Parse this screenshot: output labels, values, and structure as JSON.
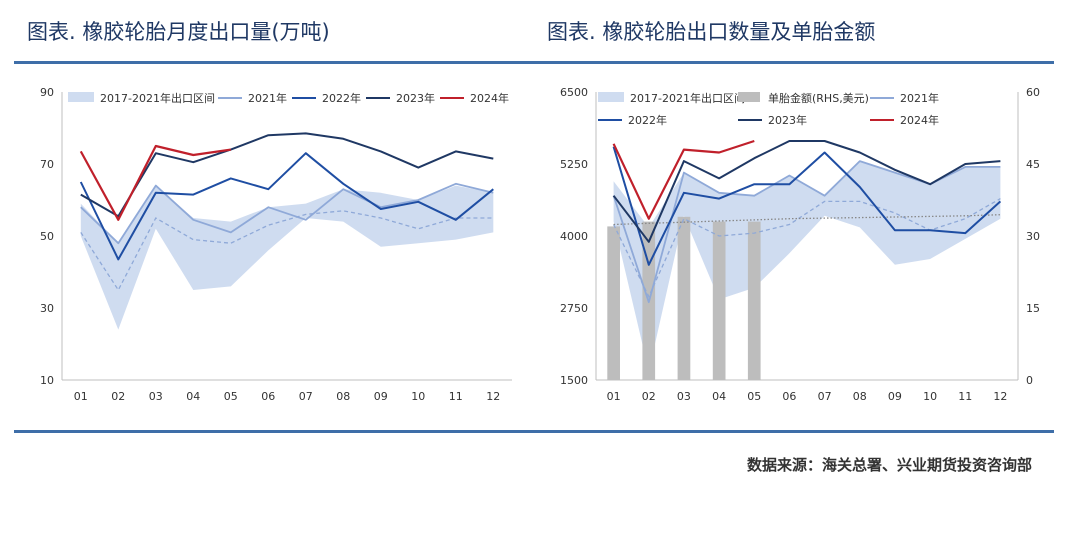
{
  "charts": {
    "left": {
      "title": "图表. 橡胶轮胎月度出口量(万吨)"
    },
    "right": {
      "title": "图表. 橡胶轮胎出口数量及单胎金额"
    }
  },
  "source": "数据来源：海关总署、兴业期货投资咨询部",
  "colors": {
    "band": "#cfdcf0",
    "y2021": "#8fa9d8",
    "y2022": "#1f4ea3",
    "y2023": "#1f3864",
    "y2024": "#c0202b",
    "bar": "#bdbdbd",
    "avg": "#8fa9d8",
    "trend": "#888888"
  },
  "chart_data": [
    {
      "type": "line",
      "title": "图表. 橡胶轮胎月度出口量(万吨)",
      "categories": [
        "01",
        "02",
        "03",
        "04",
        "05",
        "06",
        "07",
        "08",
        "09",
        "10",
        "11",
        "12"
      ],
      "ylim": [
        10,
        90
      ],
      "yticks": [
        "10",
        "30",
        "50",
        "70",
        "90"
      ],
      "band": {
        "name": "2017-2021年出口区间",
        "upper": [
          59,
          48,
          64,
          55,
          54,
          58,
          59,
          63,
          62,
          60,
          64,
          62
        ],
        "lower": [
          50,
          24,
          52,
          35,
          36,
          46,
          55,
          54,
          47,
          48,
          49,
          51
        ]
      },
      "average": [
        51,
        35,
        55,
        49,
        48,
        53,
        56,
        57,
        55,
        52,
        55,
        55
      ],
      "series": [
        {
          "name": "2021年",
          "values": [
            58,
            48,
            64,
            54.5,
            51,
            58,
            54.5,
            63,
            58,
            60,
            64.5,
            62
          ]
        },
        {
          "name": "2022年",
          "values": [
            65,
            43.5,
            62,
            61.5,
            66,
            63,
            73,
            64.5,
            57.5,
            59.5,
            54.5,
            63
          ]
        },
        {
          "name": "2023年",
          "values": [
            61.5,
            55.5,
            73,
            70.5,
            74,
            78,
            78.5,
            77,
            73.5,
            69,
            73.5,
            71.5
          ]
        },
        {
          "name": "2024年",
          "values": [
            73.5,
            54.5,
            75,
            72.5,
            74,
            null,
            null,
            null,
            null,
            null,
            null,
            null
          ]
        }
      ]
    },
    {
      "type": "line",
      "title": "图表. 橡胶轮胎出口数量及单胎金额",
      "categories": [
        "01",
        "02",
        "03",
        "04",
        "05",
        "06",
        "07",
        "08",
        "09",
        "10",
        "11",
        "12"
      ],
      "ylim": [
        1500,
        6500
      ],
      "yticks": [
        "1500",
        "2750",
        "4000",
        "5250",
        "6500"
      ],
      "y2lim": [
        0,
        60
      ],
      "y2ticks": [
        "0",
        "15",
        "30",
        "45",
        "60"
      ],
      "band": {
        "name": "2017-2021年出口区间",
        "upper": [
          4950,
          4150,
          5100,
          4750,
          4700,
          5050,
          4700,
          5300,
          5100,
          4900,
          5200,
          5200
        ],
        "lower": [
          4250,
          1650,
          4350,
          2900,
          3100,
          3700,
          4350,
          4150,
          3500,
          3600,
          3950,
          4300
        ]
      },
      "average": [
        4200,
        2950,
        4300,
        4000,
        4050,
        4200,
        4600,
        4600,
        4400,
        4100,
        4300,
        4650
      ],
      "trend": [
        4200,
        4220,
        4240,
        4260,
        4280,
        4300,
        4310,
        4320,
        4330,
        4340,
        4350,
        4370
      ],
      "bars": {
        "name": "单胎金额(RHS,美元)",
        "values": [
          32,
          33,
          34,
          33,
          33
        ]
      },
      "series": [
        {
          "name": "2021年",
          "values": [
            4700,
            2850,
            5100,
            4750,
            4700,
            5050,
            4700,
            5300,
            5100,
            4900,
            5200,
            5200
          ]
        },
        {
          "name": "2022年",
          "values": [
            5550,
            3500,
            4750,
            4650,
            4900,
            4900,
            5450,
            4850,
            4100,
            4100,
            4050,
            4600
          ]
        },
        {
          "name": "2023年",
          "values": [
            4700,
            3900,
            5300,
            5000,
            5350,
            5650,
            5650,
            5450,
            5150,
            4900,
            5250,
            5300
          ]
        },
        {
          "name": "2024年",
          "values": [
            5600,
            4300,
            5500,
            5450,
            5650,
            null,
            null,
            null,
            null,
            null,
            null,
            null
          ]
        }
      ]
    }
  ]
}
